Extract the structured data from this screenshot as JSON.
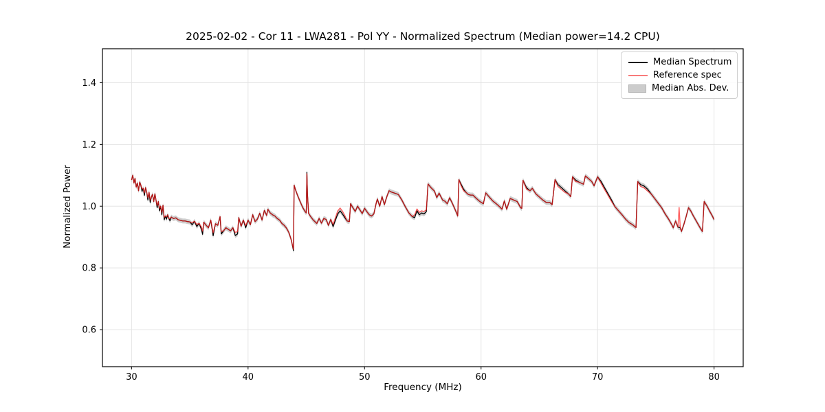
{
  "figure": {
    "title": "2025-02-02 - Cor 11 - LWA281 - Pol YY - Normalized Spectrum (Median power=14.2 CPU)",
    "xlabel": "Frequency (MHz)",
    "ylabel": "Normalized Power",
    "background": "#ffffff"
  },
  "legend": {
    "position": "upper right",
    "entries": [
      {
        "label": "Median Spectrum",
        "type": "line",
        "color": "#000000"
      },
      {
        "label": "Reference spec",
        "type": "line",
        "color": "#f87a7a"
      },
      {
        "label": "Median Abs. Dev.",
        "type": "patch",
        "color": "#cccccc"
      }
    ]
  },
  "colors": {
    "median_line": "#000000",
    "reference_line": "rgba(255,30,30,0.7)",
    "mad_band": "rgba(125,125,125,0.38)",
    "grid": "#e4e4e4",
    "spine": "#000000",
    "tick_text": "#000000"
  },
  "chart_data": {
    "type": "line",
    "title": "2025-02-02 - Cor 11 - LWA281 - Pol YY - Normalized Spectrum (Median power=14.2 CPU)",
    "xlabel": "Frequency (MHz)",
    "ylabel": "Normalized Power",
    "xlim": [
      27.5,
      82.5
    ],
    "ylim": [
      0.48,
      1.51
    ],
    "xticks": [
      30,
      40,
      50,
      60,
      70,
      80
    ],
    "yticks": [
      0.6,
      0.8,
      1.0,
      1.2,
      1.4
    ],
    "grid": true,
    "legend_position": "upper right",
    "series_names": [
      "Median Spectrum",
      "Reference spec",
      "Median Abs. Dev."
    ],
    "mad_band_halfwidth": 0.008,
    "points_format": "[freq_MHz, median_power, reference_power (omitted when equal to median)]",
    "points": [
      [
        30.0,
        1.085
      ],
      [
        30.1,
        1.1
      ],
      [
        30.2,
        1.075
      ],
      [
        30.3,
        1.09
      ],
      [
        30.4,
        1.062
      ],
      [
        30.5,
        1.075
      ],
      [
        30.6,
        1.05
      ],
      [
        30.7,
        1.078
      ],
      [
        30.8,
        1.068
      ],
      [
        30.9,
        1.048,
        1.056
      ],
      [
        31.0,
        1.058
      ],
      [
        31.1,
        1.035,
        1.043
      ],
      [
        31.2,
        1.06
      ],
      [
        31.3,
        1.045
      ],
      [
        31.4,
        1.02,
        1.028
      ],
      [
        31.5,
        1.045
      ],
      [
        31.6,
        1.012,
        1.02
      ],
      [
        31.7,
        1.03
      ],
      [
        31.8,
        1.038
      ],
      [
        31.9,
        1.015
      ],
      [
        32.0,
        1.04
      ],
      [
        32.1,
        1.02
      ],
      [
        32.2,
        0.995,
        1.002
      ],
      [
        32.3,
        1.015
      ],
      [
        32.4,
        0.985,
        0.993
      ],
      [
        32.5,
        1.0
      ],
      [
        32.6,
        0.972,
        0.98
      ],
      [
        32.7,
        1.003
      ],
      [
        32.8,
        0.956,
        0.964
      ],
      [
        32.9,
        0.968
      ],
      [
        33.0,
        0.958,
        0.966
      ],
      [
        33.1,
        0.972
      ],
      [
        33.2,
        0.96
      ],
      [
        33.3,
        0.953,
        0.96
      ],
      [
        33.4,
        0.965
      ],
      [
        33.5,
        0.962
      ],
      [
        33.6,
        0.96
      ],
      [
        33.8,
        0.962
      ],
      [
        34.0,
        0.956
      ],
      [
        34.2,
        0.954
      ],
      [
        34.4,
        0.952
      ],
      [
        34.6,
        0.952
      ],
      [
        34.8,
        0.95
      ],
      [
        35.0,
        0.949
      ],
      [
        35.2,
        0.94,
        0.947
      ],
      [
        35.4,
        0.951
      ],
      [
        35.6,
        0.934,
        0.941
      ],
      [
        35.8,
        0.944
      ],
      [
        36.0,
        0.925,
        0.933
      ],
      [
        36.1,
        0.909,
        0.919
      ],
      [
        36.2,
        0.948
      ],
      [
        36.4,
        0.938
      ],
      [
        36.6,
        0.93
      ],
      [
        36.8,
        0.955
      ],
      [
        37.0,
        0.904,
        0.914
      ],
      [
        37.2,
        0.943
      ],
      [
        37.4,
        0.938
      ],
      [
        37.6,
        0.966
      ],
      [
        37.7,
        0.91,
        0.918
      ],
      [
        37.9,
        0.92
      ],
      [
        38.1,
        0.93
      ],
      [
        38.3,
        0.925
      ],
      [
        38.5,
        0.92
      ],
      [
        38.7,
        0.93
      ],
      [
        38.9,
        0.905,
        0.915
      ],
      [
        39.1,
        0.91,
        0.918
      ],
      [
        39.2,
        0.963
      ],
      [
        39.4,
        0.935
      ],
      [
        39.6,
        0.955
      ],
      [
        39.8,
        0.93,
        0.937
      ],
      [
        40.0,
        0.955
      ],
      [
        40.2,
        0.94
      ],
      [
        40.4,
        0.972
      ],
      [
        40.6,
        0.95
      ],
      [
        40.8,
        0.958
      ],
      [
        41.0,
        0.977
      ],
      [
        41.2,
        0.955
      ],
      [
        41.4,
        0.986
      ],
      [
        41.6,
        0.97
      ],
      [
        41.7,
        0.99
      ],
      [
        41.9,
        0.978
      ],
      [
        42.1,
        0.972
      ],
      [
        42.3,
        0.968
      ],
      [
        42.5,
        0.96
      ],
      [
        42.7,
        0.955
      ],
      [
        42.9,
        0.944
      ],
      [
        43.1,
        0.938
      ],
      [
        43.3,
        0.929
      ],
      [
        43.5,
        0.915
      ],
      [
        43.7,
        0.892
      ],
      [
        43.9,
        0.856,
        0.86
      ],
      [
        43.95,
        1.068
      ],
      [
        44.1,
        1.05
      ],
      [
        44.3,
        1.03
      ],
      [
        44.5,
        1.012
      ],
      [
        44.7,
        0.995
      ],
      [
        44.9,
        0.982
      ],
      [
        45.0,
        0.978
      ],
      [
        45.05,
        1.11,
        1.105
      ],
      [
        45.1,
        1.04
      ],
      [
        45.2,
        0.976
      ],
      [
        45.4,
        0.965
      ],
      [
        45.6,
        0.955
      ],
      [
        45.9,
        0.944
      ],
      [
        46.1,
        0.96
      ],
      [
        46.3,
        0.945
      ],
      [
        46.5,
        0.96
      ],
      [
        46.7,
        0.957
      ],
      [
        46.9,
        0.938
      ],
      [
        47.1,
        0.957
      ],
      [
        47.3,
        0.934,
        0.941
      ],
      [
        47.5,
        0.955,
        0.963
      ],
      [
        47.7,
        0.975,
        0.985
      ],
      [
        47.9,
        0.985,
        0.994
      ],
      [
        48.1,
        0.975,
        0.984
      ],
      [
        48.3,
        0.963,
        0.97
      ],
      [
        48.5,
        0.952
      ],
      [
        48.7,
        0.95
      ],
      [
        48.8,
        1.008
      ],
      [
        49.0,
        0.995
      ],
      [
        49.2,
        0.983
      ],
      [
        49.4,
        1.0
      ],
      [
        49.6,
        0.988
      ],
      [
        49.8,
        0.976
      ],
      [
        50.0,
        0.993
      ],
      [
        50.2,
        0.982
      ],
      [
        50.4,
        0.972
      ],
      [
        50.6,
        0.968
      ],
      [
        50.8,
        0.975
      ],
      [
        51.0,
        1.01
      ],
      [
        51.1,
        1.023
      ],
      [
        51.3,
        1.0
      ],
      [
        51.5,
        1.031
      ],
      [
        51.7,
        1.005
      ],
      [
        51.9,
        1.03
      ],
      [
        52.1,
        1.05
      ],
      [
        52.3,
        1.046
      ],
      [
        52.6,
        1.042
      ],
      [
        52.9,
        1.038
      ],
      [
        53.2,
        1.02
      ],
      [
        53.5,
        0.998
      ],
      [
        53.8,
        0.978
      ],
      [
        54.1,
        0.966
      ],
      [
        54.3,
        0.963,
        0.972
      ],
      [
        54.5,
        0.985,
        0.991
      ],
      [
        54.7,
        0.972,
        0.98
      ],
      [
        54.9,
        0.978,
        0.985
      ],
      [
        55.1,
        0.975,
        0.983
      ],
      [
        55.3,
        0.982,
        0.988
      ],
      [
        55.45,
        1.072
      ],
      [
        55.7,
        1.06
      ],
      [
        56.0,
        1.049
      ],
      [
        56.2,
        1.028
      ],
      [
        56.4,
        1.042
      ],
      [
        56.7,
        1.02
      ],
      [
        56.9,
        1.016
      ],
      [
        57.1,
        1.008
      ],
      [
        57.3,
        1.027
      ],
      [
        57.5,
        1.012
      ],
      [
        57.7,
        0.995
      ],
      [
        57.9,
        0.978
      ],
      [
        58.0,
        0.968
      ],
      [
        58.1,
        1.086
      ],
      [
        58.3,
        1.07,
        1.065
      ],
      [
        58.5,
        1.055,
        1.05
      ],
      [
        58.7,
        1.045
      ],
      [
        58.9,
        1.038
      ],
      [
        59.1,
        1.036
      ],
      [
        59.3,
        1.036
      ],
      [
        59.6,
        1.025
      ],
      [
        59.9,
        1.015
      ],
      [
        60.2,
        1.008
      ],
      [
        60.4,
        1.043
      ],
      [
        60.7,
        1.03
      ],
      [
        61.0,
        1.017
      ],
      [
        61.3,
        1.008
      ],
      [
        61.6,
        0.998
      ],
      [
        61.8,
        0.99
      ],
      [
        62.0,
        1.017
      ],
      [
        62.2,
        0.99
      ],
      [
        62.5,
        1.025
      ],
      [
        62.8,
        1.02
      ],
      [
        63.1,
        1.015
      ],
      [
        63.4,
        0.995
      ],
      [
        63.5,
        0.993
      ],
      [
        63.6,
        1.084
      ],
      [
        63.9,
        1.06,
        1.055
      ],
      [
        64.2,
        1.05
      ],
      [
        64.4,
        1.058
      ],
      [
        64.7,
        1.04
      ],
      [
        65.0,
        1.03
      ],
      [
        65.3,
        1.02
      ],
      [
        65.6,
        1.012
      ],
      [
        65.9,
        1.012
      ],
      [
        66.1,
        1.005
      ],
      [
        66.35,
        1.086
      ],
      [
        66.6,
        1.07,
        1.064
      ],
      [
        66.9,
        1.06,
        1.054
      ],
      [
        67.2,
        1.05,
        1.045
      ],
      [
        67.5,
        1.04
      ],
      [
        67.7,
        1.031
      ],
      [
        67.85,
        1.095
      ],
      [
        68.1,
        1.085,
        1.08
      ],
      [
        68.4,
        1.078
      ],
      [
        68.8,
        1.071
      ],
      [
        68.95,
        1.098
      ],
      [
        69.2,
        1.09
      ],
      [
        69.5,
        1.08
      ],
      [
        69.7,
        1.066
      ],
      [
        70.0,
        1.095
      ],
      [
        70.3,
        1.08,
        1.074
      ],
      [
        70.6,
        1.06,
        1.054
      ],
      [
        70.9,
        1.04,
        1.035
      ],
      [
        71.2,
        1.02,
        1.015
      ],
      [
        71.5,
        0.998
      ],
      [
        71.8,
        0.985
      ],
      [
        72.1,
        0.972
      ],
      [
        72.4,
        0.958
      ],
      [
        72.7,
        0.947
      ],
      [
        73.0,
        0.94
      ],
      [
        73.3,
        0.931
      ],
      [
        73.45,
        1.08
      ],
      [
        73.7,
        1.07,
        1.064
      ],
      [
        74.0,
        1.065,
        1.059
      ],
      [
        74.3,
        1.055,
        1.049
      ],
      [
        74.6,
        1.04
      ],
      [
        74.9,
        1.025
      ],
      [
        75.2,
        1.01
      ],
      [
        75.5,
        0.995
      ],
      [
        75.8,
        0.975
      ],
      [
        76.1,
        0.958
      ],
      [
        76.4,
        0.938
      ],
      [
        76.5,
        0.93
      ],
      [
        76.7,
        0.952
      ],
      [
        76.9,
        0.932
      ],
      [
        77.0,
        0.931,
        0.996
      ],
      [
        77.1,
        0.93
      ],
      [
        77.2,
        0.918
      ],
      [
        77.4,
        0.94
      ],
      [
        77.6,
        0.966
      ],
      [
        77.8,
        0.995
      ],
      [
        78.0,
        0.985
      ],
      [
        78.2,
        0.97
      ],
      [
        78.5,
        0.95
      ],
      [
        78.8,
        0.93
      ],
      [
        79.0,
        0.918
      ],
      [
        79.15,
        1.015
      ],
      [
        79.4,
        1.0
      ],
      [
        79.6,
        0.985
      ],
      [
        79.8,
        0.972
      ],
      [
        80.0,
        0.957
      ]
    ]
  }
}
